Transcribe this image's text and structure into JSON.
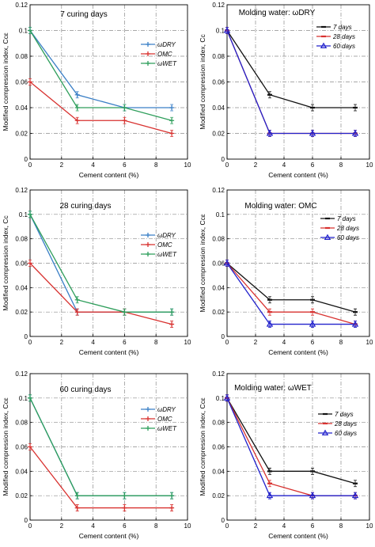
{
  "figure": {
    "colors": {
      "w_dry": "#3a7fc6",
      "omc": "#d8312f",
      "w_wet": "#2e9e5b",
      "d7": "#111111",
      "d28": "#d8312f",
      "d60": "#2222cc"
    }
  },
  "chart_data": [
    {
      "type": "line",
      "panel": "left",
      "title": "7 curing days",
      "xlabel": "Cement content (%)",
      "ylabel": "Modified compression index, Ccε",
      "xlim": [
        0,
        10
      ],
      "ylim": [
        0,
        0.12
      ],
      "xticks": [
        "0",
        "2",
        "4",
        "6",
        "8",
        "10"
      ],
      "yticks": [
        "0",
        "0.02",
        "0.04",
        "0.06",
        "0.08",
        "0.1",
        "0.12"
      ],
      "grid": true,
      "legend_position": "right",
      "series": [
        {
          "name": "ωDRY",
          "color_key": "w_dry",
          "marker": "plus",
          "x": [
            0,
            3,
            6,
            9
          ],
          "y": [
            0.1,
            0.05,
            0.04,
            0.04
          ]
        },
        {
          "name": "OMC",
          "color_key": "omc",
          "marker": "plus",
          "x": [
            0,
            3,
            6,
            9
          ],
          "y": [
            0.06,
            0.03,
            0.03,
            0.02
          ]
        },
        {
          "name": "ωWET",
          "color_key": "w_wet",
          "marker": "plus",
          "x": [
            0,
            3,
            6,
            9
          ],
          "y": [
            0.1,
            0.04,
            0.04,
            0.03
          ]
        }
      ]
    },
    {
      "type": "line",
      "panel": "right",
      "title": "Molding water: ωDRY",
      "xlabel": "Cement content (%)",
      "ylabel": "Modified compression index, Cc",
      "xlim": [
        0,
        10
      ],
      "ylim": [
        0,
        0.12
      ],
      "xticks": [
        "0",
        "2",
        "4",
        "6",
        "8",
        "10"
      ],
      "yticks": [
        "0",
        "0.02",
        "0.04",
        "0.06",
        "0.08",
        "0.1",
        "0.12"
      ],
      "grid": true,
      "legend_position": "top-right",
      "series": [
        {
          "name": "7 days",
          "color_key": "d7",
          "marker": "dash",
          "x": [
            0,
            3,
            6,
            9
          ],
          "y": [
            0.1,
            0.05,
            0.04,
            0.04
          ]
        },
        {
          "name": "28 days",
          "color_key": "d28",
          "marker": "dash",
          "x": [
            0,
            3,
            6,
            9
          ],
          "y": [
            0.1,
            0.02,
            0.02,
            0.02
          ]
        },
        {
          "name": "60 days",
          "color_key": "d60",
          "marker": "triangle",
          "x": [
            0,
            3,
            6,
            9
          ],
          "y": [
            0.1,
            0.02,
            0.02,
            0.02
          ]
        }
      ]
    },
    {
      "type": "line",
      "panel": "left",
      "title": "28 curing days",
      "xlabel": "Cement content (%)",
      "ylabel": "Modified compression index, Cc",
      "xlim": [
        0,
        10
      ],
      "ylim": [
        0,
        0.12
      ],
      "xticks": [
        "0",
        "2",
        "4",
        "6",
        "8",
        "10"
      ],
      "yticks": [
        "0",
        "0.02",
        "0.04",
        "0.06",
        "0.08",
        "0.1",
        "0.12"
      ],
      "grid": true,
      "legend_position": "right",
      "series": [
        {
          "name": "ωDRY",
          "color_key": "w_dry",
          "marker": "plus",
          "x": [
            0,
            3,
            6,
            9
          ],
          "y": [
            0.1,
            0.02,
            0.02,
            0.02
          ]
        },
        {
          "name": "OMC",
          "color_key": "omc",
          "marker": "plus",
          "x": [
            0,
            3,
            6,
            9
          ],
          "y": [
            0.06,
            0.02,
            0.02,
            0.01
          ]
        },
        {
          "name": "ωWET",
          "color_key": "w_wet",
          "marker": "plus",
          "x": [
            0,
            3,
            6,
            9
          ],
          "y": [
            0.1,
            0.03,
            0.02,
            0.02
          ]
        }
      ]
    },
    {
      "type": "line",
      "panel": "right",
      "title": "Molding water: OMC",
      "xlabel": "Cement content (%)",
      "ylabel": "Modified compression index, Ccε",
      "xlim": [
        0,
        10
      ],
      "ylim": [
        0,
        0.12
      ],
      "xticks": [
        "0",
        "2",
        "4",
        "6",
        "8",
        "10"
      ],
      "yticks": [
        "0",
        "0.02",
        "0.04",
        "0.06",
        "0.08",
        "0.1",
        "0.12"
      ],
      "grid": true,
      "legend_position": "top-right",
      "series": [
        {
          "name": "7 days",
          "color_key": "d7",
          "marker": "dash",
          "x": [
            0,
            3,
            6,
            9
          ],
          "y": [
            0.06,
            0.03,
            0.03,
            0.02
          ]
        },
        {
          "name": "28 days",
          "color_key": "d28",
          "marker": "dash",
          "x": [
            0,
            3,
            6,
            9
          ],
          "y": [
            0.06,
            0.02,
            0.02,
            0.01
          ]
        },
        {
          "name": "60 days",
          "color_key": "d60",
          "marker": "triangle",
          "x": [
            0,
            3,
            6,
            9
          ],
          "y": [
            0.06,
            0.01,
            0.01,
            0.01
          ]
        }
      ]
    },
    {
      "type": "line",
      "panel": "left",
      "title": "60 curing days",
      "xlabel": "Cement content (%)",
      "ylabel": "Modified compression index, Ccε",
      "xlim": [
        0,
        10
      ],
      "ylim": [
        0,
        0.12
      ],
      "xticks": [
        "0",
        "2",
        "4",
        "6",
        "8",
        "10"
      ],
      "yticks": [
        "0",
        "0.02",
        "0.04",
        "0.06",
        "0.08",
        "0.1",
        "0.12"
      ],
      "grid": true,
      "legend_position": "right",
      "series": [
        {
          "name": "ωDRY",
          "color_key": "w_dry",
          "marker": "plus",
          "x": [
            0,
            3,
            6,
            9
          ],
          "y": [
            0.1,
            0.02,
            0.02,
            0.02
          ]
        },
        {
          "name": "OMC",
          "color_key": "omc",
          "marker": "plus",
          "x": [
            0,
            3,
            6,
            9
          ],
          "y": [
            0.06,
            0.01,
            0.01,
            0.01
          ]
        },
        {
          "name": "ωWET",
          "color_key": "w_wet",
          "marker": "plus",
          "x": [
            0,
            3,
            6,
            9
          ],
          "y": [
            0.1,
            0.02,
            0.02,
            0.02
          ]
        }
      ]
    },
    {
      "type": "line",
      "panel": "right",
      "title": "Molding water: ωWET",
      "xlabel": "Cement content (%)",
      "ylabel": "Modified compression index, Ccε",
      "xlim": [
        0,
        10
      ],
      "ylim": [
        0,
        0.12
      ],
      "xticks": [
        "0",
        "2",
        "4",
        "6",
        "8",
        "10"
      ],
      "yticks": [
        "0",
        "0.02",
        "0.04",
        "0.06",
        "0.08",
        "0.1",
        "0.12"
      ],
      "grid": true,
      "legend_position": "right",
      "series": [
        {
          "name": "7 days",
          "color_key": "d7",
          "marker": "dash",
          "x": [
            0,
            3,
            6,
            9
          ],
          "y": [
            0.1,
            0.04,
            0.04,
            0.03
          ]
        },
        {
          "name": "28 days",
          "color_key": "d28",
          "marker": "dash",
          "x": [
            0,
            3,
            6,
            9
          ],
          "y": [
            0.1,
            0.03,
            0.02,
            0.02
          ]
        },
        {
          "name": "60 days",
          "color_key": "d60",
          "marker": "triangle",
          "x": [
            0,
            3,
            6,
            9
          ],
          "y": [
            0.1,
            0.02,
            0.02,
            0.02
          ]
        }
      ]
    }
  ]
}
